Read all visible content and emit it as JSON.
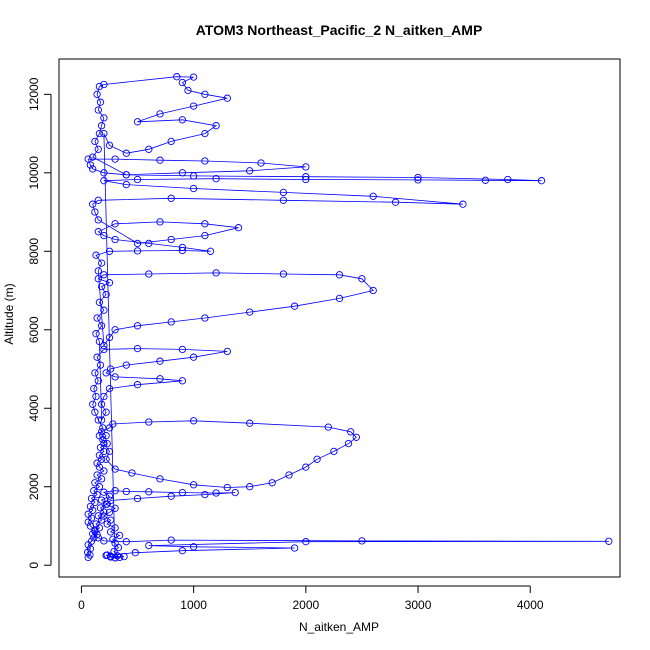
{
  "chart_data": {
    "type": "scatter",
    "title": "ATOM3 Northeast_Pacific_2 N_aitken_AMP",
    "xlabel": "N_aitken_AMP",
    "ylabel": "Altitude (m)",
    "xlim": [
      -200,
      4800
    ],
    "ylim": [
      -300,
      12900
    ],
    "xticks": [
      0,
      1000,
      2000,
      3000,
      4000
    ],
    "yticks": [
      0,
      2000,
      4000,
      6000,
      8000,
      10000,
      12000
    ],
    "grid": false,
    "legend": "none",
    "colors": {
      "series": "#0000ff",
      "axes": "#000000",
      "background": "#ffffff"
    },
    "series": [
      {
        "marker": "open-circle",
        "connected": true,
        "points": [
          [
            60,
            200
          ],
          [
            75,
            260
          ],
          [
            55,
            330
          ],
          [
            80,
            420
          ],
          [
            60,
            520
          ],
          [
            90,
            610
          ],
          [
            110,
            700
          ],
          [
            140,
            780
          ],
          [
            120,
            870
          ],
          [
            160,
            950
          ],
          [
            130,
            1050
          ],
          [
            180,
            1150
          ],
          [
            150,
            1260
          ],
          [
            200,
            1360
          ],
          [
            170,
            1460
          ],
          [
            230,
            1560
          ],
          [
            180,
            1660
          ],
          [
            250,
            1760
          ],
          [
            200,
            1860
          ],
          [
            300,
            1900
          ],
          [
            400,
            1880
          ],
          [
            600,
            1870
          ],
          [
            900,
            1850
          ],
          [
            1200,
            1840
          ],
          [
            1370,
            1850
          ],
          [
            1100,
            1800
          ],
          [
            800,
            1760
          ],
          [
            500,
            1700
          ],
          [
            260,
            1650
          ],
          [
            220,
            1550
          ],
          [
            300,
            1450
          ],
          [
            250,
            1350
          ],
          [
            200,
            1250
          ],
          [
            260,
            1150
          ],
          [
            230,
            1050
          ],
          [
            300,
            950
          ],
          [
            260,
            850
          ],
          [
            340,
            760
          ],
          [
            280,
            660
          ],
          [
            300,
            560
          ],
          [
            330,
            450
          ],
          [
            290,
            350
          ],
          [
            320,
            240
          ],
          [
            300,
            190
          ],
          [
            260,
            210
          ],
          [
            230,
            260
          ],
          [
            480,
            320
          ],
          [
            900,
            370
          ],
          [
            1900,
            440
          ],
          [
            1000,
            470
          ],
          [
            600,
            500
          ],
          [
            2000,
            600
          ],
          [
            4700,
            610
          ],
          [
            2500,
            620
          ],
          [
            800,
            640
          ],
          [
            400,
            600
          ],
          [
            200,
            620
          ],
          [
            150,
            700
          ],
          [
            100,
            800
          ],
          [
            120,
            900
          ],
          [
            80,
            1000
          ],
          [
            60,
            1100
          ],
          [
            90,
            1200
          ],
          [
            60,
            1300
          ],
          [
            100,
            1400
          ],
          [
            80,
            1500
          ],
          [
            120,
            1600
          ],
          [
            90,
            1700
          ],
          [
            140,
            1800
          ],
          [
            110,
            1900
          ],
          [
            160,
            2000
          ],
          [
            120,
            2100
          ],
          [
            180,
            2200
          ],
          [
            140,
            2300
          ],
          [
            200,
            2400
          ],
          [
            160,
            2500
          ],
          [
            140,
            2600
          ],
          [
            180,
            2700
          ],
          [
            160,
            2800
          ],
          [
            200,
            2900
          ],
          [
            170,
            3000
          ],
          [
            230,
            3100
          ],
          [
            190,
            3200
          ],
          [
            220,
            3300
          ],
          [
            180,
            3400
          ],
          [
            250,
            3500
          ],
          [
            280,
            3600
          ],
          [
            600,
            3650
          ],
          [
            1000,
            3680
          ],
          [
            1500,
            3620
          ],
          [
            2200,
            3520
          ],
          [
            2400,
            3400
          ],
          [
            2450,
            3260
          ],
          [
            2380,
            3100
          ],
          [
            2250,
            2900
          ],
          [
            2100,
            2700
          ],
          [
            2000,
            2500
          ],
          [
            1850,
            2300
          ],
          [
            1700,
            2100
          ],
          [
            1500,
            2000
          ],
          [
            1300,
            1980
          ],
          [
            1000,
            2050
          ],
          [
            700,
            2200
          ],
          [
            450,
            2350
          ],
          [
            300,
            2450
          ],
          [
            220,
            2700
          ],
          [
            250,
            2900
          ],
          [
            200,
            3100
          ],
          [
            160,
            3300
          ],
          [
            190,
            3500
          ],
          [
            150,
            3700
          ],
          [
            120,
            3900
          ],
          [
            100,
            4100
          ],
          [
            130,
            4300
          ],
          [
            110,
            4500
          ],
          [
            150,
            4700
          ],
          [
            120,
            4900
          ],
          [
            170,
            5100
          ],
          [
            140,
            5300
          ],
          [
            200,
            5500
          ],
          [
            500,
            5520
          ],
          [
            900,
            5500
          ],
          [
            1300,
            5450
          ],
          [
            1000,
            5300
          ],
          [
            700,
            5200
          ],
          [
            400,
            5100
          ],
          [
            260,
            5000
          ],
          [
            220,
            4900
          ],
          [
            300,
            4800
          ],
          [
            700,
            4750
          ],
          [
            900,
            4700
          ],
          [
            500,
            4600
          ],
          [
            250,
            4500
          ],
          [
            200,
            4300
          ],
          [
            180,
            4100
          ],
          [
            220,
            3900
          ],
          [
            180,
            3700
          ],
          [
            160,
            5700
          ],
          [
            130,
            5900
          ],
          [
            180,
            6100
          ],
          [
            140,
            6300
          ],
          [
            200,
            6500
          ],
          [
            160,
            6700
          ],
          [
            220,
            6900
          ],
          [
            180,
            7100
          ],
          [
            250,
            7200
          ],
          [
            150,
            7300
          ],
          [
            200,
            7400
          ],
          [
            600,
            7420
          ],
          [
            1200,
            7450
          ],
          [
            1800,
            7420
          ],
          [
            2300,
            7400
          ],
          [
            2500,
            7300
          ],
          [
            2600,
            7000
          ],
          [
            2300,
            6800
          ],
          [
            1900,
            6600
          ],
          [
            1500,
            6450
          ],
          [
            1100,
            6300
          ],
          [
            800,
            6200
          ],
          [
            500,
            6100
          ],
          [
            300,
            6000
          ],
          [
            250,
            5800
          ],
          [
            200,
            5600
          ],
          [
            150,
            7500
          ],
          [
            180,
            7700
          ],
          [
            130,
            7900
          ],
          [
            250,
            8000
          ],
          [
            500,
            8010
          ],
          [
            900,
            8020
          ],
          [
            1150,
            8000
          ],
          [
            900,
            8100
          ],
          [
            600,
            8200
          ],
          [
            300,
            8300
          ],
          [
            200,
            8400
          ],
          [
            150,
            8500
          ],
          [
            300,
            8700
          ],
          [
            700,
            8750
          ],
          [
            1100,
            8700
          ],
          [
            1400,
            8600
          ],
          [
            1100,
            8400
          ],
          [
            800,
            8300
          ],
          [
            500,
            8200
          ],
          [
            150,
            8800
          ],
          [
            120,
            9000
          ],
          [
            100,
            9200
          ],
          [
            150,
            9300
          ],
          [
            800,
            9350
          ],
          [
            1800,
            9300
          ],
          [
            2800,
            9250
          ],
          [
            3400,
            9200
          ],
          [
            2600,
            9400
          ],
          [
            1800,
            9500
          ],
          [
            1000,
            9600
          ],
          [
            400,
            9700
          ],
          [
            200,
            9800
          ],
          [
            500,
            9830
          ],
          [
            1200,
            9850
          ],
          [
            2000,
            9830
          ],
          [
            3000,
            9820
          ],
          [
            3600,
            9810
          ],
          [
            4100,
            9800
          ],
          [
            3800,
            9830
          ],
          [
            3000,
            9880
          ],
          [
            2000,
            9900
          ],
          [
            1000,
            9920
          ],
          [
            400,
            9950
          ],
          [
            200,
            10000
          ],
          [
            100,
            10100
          ],
          [
            80,
            10200
          ],
          [
            60,
            10350
          ],
          [
            300,
            10350
          ],
          [
            700,
            10320
          ],
          [
            1100,
            10300
          ],
          [
            1600,
            10250
          ],
          [
            2000,
            10150
          ],
          [
            1500,
            10050
          ],
          [
            900,
            10000
          ],
          [
            400,
            9950
          ],
          [
            100,
            10400
          ],
          [
            150,
            10600
          ],
          [
            120,
            10800
          ],
          [
            160,
            11000
          ],
          [
            180,
            11200
          ],
          [
            200,
            11400
          ],
          [
            150,
            11600
          ],
          [
            170,
            11800
          ],
          [
            140,
            12000
          ],
          [
            160,
            12200
          ],
          [
            200,
            12250
          ],
          [
            850,
            12450
          ],
          [
            1000,
            12440
          ],
          [
            900,
            12300
          ],
          [
            950,
            12100
          ],
          [
            1100,
            12000
          ],
          [
            1300,
            11900
          ],
          [
            1000,
            11700
          ],
          [
            700,
            11500
          ],
          [
            500,
            11300
          ],
          [
            900,
            11350
          ],
          [
            1200,
            11200
          ],
          [
            1100,
            11000
          ],
          [
            800,
            10800
          ],
          [
            600,
            10600
          ],
          [
            400,
            10500
          ],
          [
            250,
            10700
          ],
          [
            200,
            11000
          ],
          [
            300,
            190
          ],
          [
            340,
            200
          ],
          [
            380,
            220
          ],
          [
            260,
            230
          ],
          [
            220,
            250
          ]
        ]
      }
    ]
  }
}
